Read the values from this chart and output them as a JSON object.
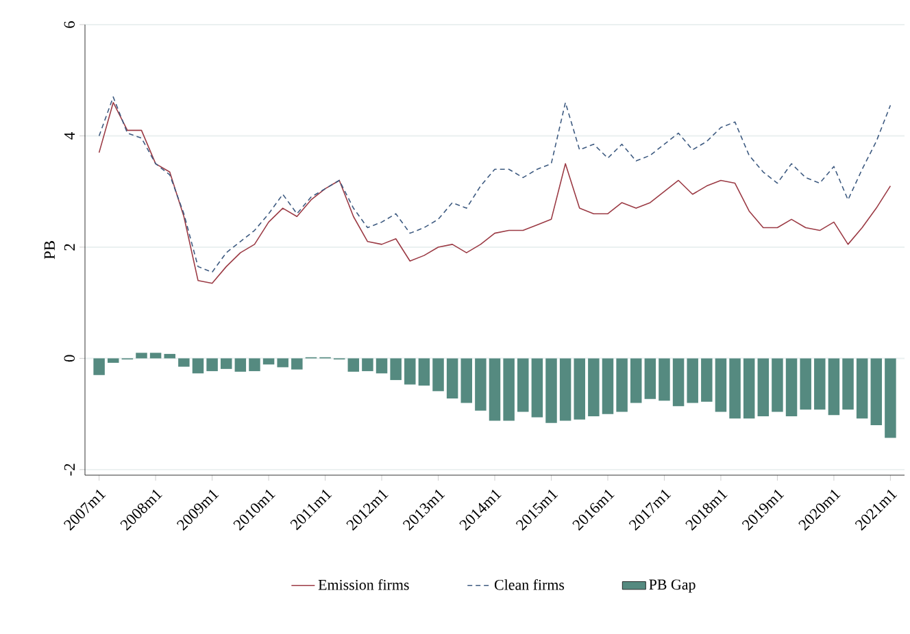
{
  "chart_data": {
    "type": "line",
    "ylabel": "PB",
    "x": [
      "2007-01",
      "2007-04",
      "2007-07",
      "2007-10",
      "2008-01",
      "2008-04",
      "2008-07",
      "2008-10",
      "2009-01",
      "2009-04",
      "2009-07",
      "2009-10",
      "2010-01",
      "2010-04",
      "2010-07",
      "2010-10",
      "2011-01",
      "2011-04",
      "2011-07",
      "2011-10",
      "2012-01",
      "2012-04",
      "2012-07",
      "2012-10",
      "2013-01",
      "2013-04",
      "2013-07",
      "2013-10",
      "2014-01",
      "2014-04",
      "2014-07",
      "2014-10",
      "2015-01",
      "2015-04",
      "2015-07",
      "2015-10",
      "2016-01",
      "2016-04",
      "2016-07",
      "2016-10",
      "2017-01",
      "2017-04",
      "2017-07",
      "2017-10",
      "2018-01",
      "2018-04",
      "2018-07",
      "2018-10",
      "2019-01",
      "2019-04",
      "2019-07",
      "2019-10",
      "2020-01",
      "2020-04",
      "2020-07",
      "2020-10",
      "2021-01"
    ],
    "series": [
      {
        "name": "Emission firms",
        "line_style": "solid",
        "color": "#9b3a44",
        "values": [
          3.7,
          4.6,
          4.1,
          4.1,
          3.5,
          3.35,
          2.55,
          1.4,
          1.35,
          1.65,
          1.9,
          2.05,
          2.45,
          2.7,
          2.55,
          2.85,
          3.05,
          3.2,
          2.55,
          2.1,
          2.05,
          2.15,
          1.75,
          1.85,
          2.0,
          2.05,
          1.9,
          2.05,
          2.25,
          2.3,
          2.3,
          2.4,
          2.5,
          3.5,
          2.7,
          2.6,
          2.6,
          2.8,
          2.7,
          2.8,
          3.0,
          3.2,
          2.95,
          3.1,
          3.2,
          3.15,
          2.65,
          2.35,
          2.35,
          2.5,
          2.35,
          2.3,
          2.45,
          2.05,
          2.35,
          2.7,
          3.1
        ]
      },
      {
        "name": "Clean firms",
        "line_style": "dashed",
        "color": "#3d5a80",
        "values": [
          4.0,
          4.7,
          4.05,
          3.96,
          3.5,
          3.3,
          2.6,
          1.65,
          1.55,
          1.9,
          2.1,
          2.3,
          2.6,
          2.95,
          2.6,
          2.9,
          3.05,
          3.2,
          2.7,
          2.35,
          2.45,
          2.6,
          2.25,
          2.35,
          2.5,
          2.8,
          2.7,
          3.1,
          3.4,
          3.4,
          3.25,
          3.4,
          3.5,
          4.6,
          3.75,
          3.85,
          3.6,
          3.85,
          3.55,
          3.65,
          3.85,
          4.05,
          3.75,
          3.9,
          4.15,
          4.25,
          3.65,
          3.35,
          3.15,
          3.5,
          3.25,
          3.15,
          3.45,
          2.85,
          3.4,
          3.9,
          4.55
        ]
      },
      {
        "name": "PB Gap",
        "type": "bar",
        "color": "#558a80",
        "values": [
          -0.3,
          -0.08,
          -0.02,
          0.1,
          0.1,
          0.08,
          -0.15,
          -0.27,
          -0.23,
          -0.19,
          -0.24,
          -0.23,
          -0.11,
          -0.16,
          -0.2,
          0.02,
          0.02,
          -0.02,
          -0.24,
          -0.23,
          -0.27,
          -0.39,
          -0.47,
          -0.49,
          -0.59,
          -0.72,
          -0.8,
          -0.94,
          -1.12,
          -1.12,
          -0.96,
          -1.06,
          -1.16,
          -1.12,
          -1.1,
          -1.04,
          -1.0,
          -0.96,
          -0.8,
          -0.73,
          -0.76,
          -0.86,
          -0.8,
          -0.78,
          -0.96,
          -1.08,
          -1.08,
          -1.04,
          -0.96,
          -1.04,
          -0.92,
          -0.92,
          -1.02,
          -0.92,
          -1.08,
          -1.2,
          -1.43
        ]
      }
    ],
    "xlim": [
      "2006-10",
      "2021-04"
    ],
    "xticks": [
      {
        "value": "2007-01",
        "label": "2007m1"
      },
      {
        "value": "2008-01",
        "label": "2008m1"
      },
      {
        "value": "2009-01",
        "label": "2009m1"
      },
      {
        "value": "2010-01",
        "label": "2010m1"
      },
      {
        "value": "2011-01",
        "label": "2011m1"
      },
      {
        "value": "2012-01",
        "label": "2012m1"
      },
      {
        "value": "2013-01",
        "label": "2013m1"
      },
      {
        "value": "2014-01",
        "label": "2014m1"
      },
      {
        "value": "2015-01",
        "label": "2015m1"
      },
      {
        "value": "2016-01",
        "label": "2016m1"
      },
      {
        "value": "2017-01",
        "label": "2017m1"
      },
      {
        "value": "2018-01",
        "label": "2018m1"
      },
      {
        "value": "2019-01",
        "label": "2019m1"
      },
      {
        "value": "2020-01",
        "label": "2020m1"
      },
      {
        "value": "2021-01",
        "label": "2021m1"
      }
    ],
    "ylim": [
      -2.1,
      6
    ],
    "yticks": [
      -2,
      0,
      2,
      4,
      6
    ],
    "grid": "y",
    "legend": "bottom"
  }
}
